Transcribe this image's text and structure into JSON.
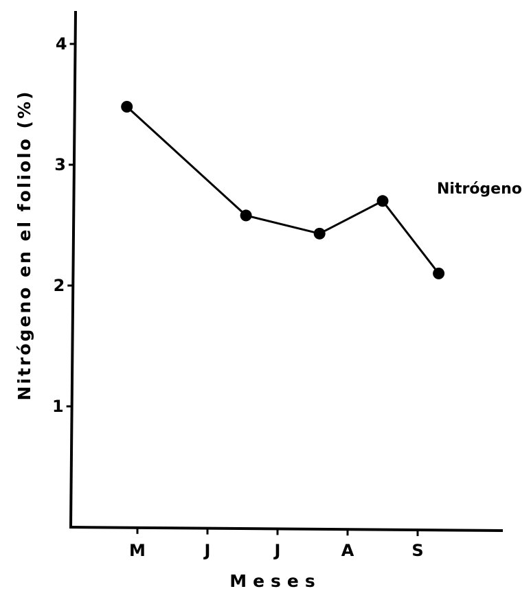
{
  "chart_data": {
    "type": "line",
    "xlabel": "Meses",
    "ylabel": "Nitrógeno en el foliolo (%)",
    "categories": [
      "M",
      "J",
      "J",
      "A",
      "S"
    ],
    "yticks": [
      "1",
      "2",
      "3",
      "4"
    ],
    "ylim": [
      0,
      4.3
    ],
    "grid": false,
    "series": [
      {
        "name": "Nitrógeno",
        "x": [
          -0.15,
          1.55,
          2.6,
          3.5,
          4.3
        ],
        "values": [
          3.48,
          2.58,
          2.43,
          2.7,
          2.1
        ]
      }
    ]
  }
}
